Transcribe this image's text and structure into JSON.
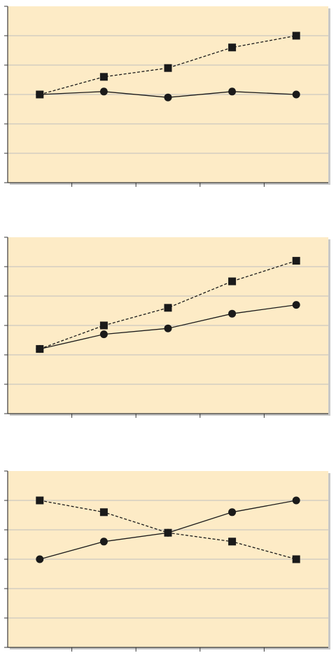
{
  "colors": {
    "plot_bg": "#fdebc6",
    "grid": "#bfbfbf",
    "axis": "#3a3a3a",
    "series": "#1a1a1a",
    "shadow": "#9a9a9a"
  },
  "chart_data": [
    {
      "type": "line",
      "grid": true,
      "ylim": [
        0,
        6
      ],
      "yticks": [
        0,
        1,
        2,
        3,
        4,
        5,
        6
      ],
      "xlim": [
        0.5,
        5.5
      ],
      "x_ticks": [
        1.5,
        2.5,
        3.5,
        4.5
      ],
      "x": [
        1,
        2,
        3,
        4,
        5
      ],
      "series": [
        {
          "marker": "square",
          "dash": true,
          "values": [
            3.0,
            3.6,
            3.9,
            4.6,
            5.0
          ]
        },
        {
          "marker": "circle",
          "dash": false,
          "values": [
            3.0,
            3.1,
            2.9,
            3.1,
            3.0
          ]
        }
      ]
    },
    {
      "type": "line",
      "grid": true,
      "ylim": [
        0,
        6
      ],
      "yticks": [
        0,
        1,
        2,
        3,
        4,
        5,
        6
      ],
      "xlim": [
        0.5,
        5.5
      ],
      "x_ticks": [
        1.5,
        2.5,
        3.5,
        4.5
      ],
      "x": [
        1,
        2,
        3,
        4,
        5
      ],
      "series": [
        {
          "marker": "square",
          "dash": true,
          "values": [
            2.2,
            3.0,
            3.6,
            4.5,
            5.2
          ]
        },
        {
          "marker": "circle",
          "dash": false,
          "values": [
            2.2,
            2.7,
            2.9,
            3.4,
            3.7
          ]
        }
      ]
    },
    {
      "type": "line",
      "grid": true,
      "ylim": [
        0,
        6
      ],
      "yticks": [
        0,
        1,
        2,
        3,
        4,
        5,
        6
      ],
      "xlim": [
        0.5,
        5.5
      ],
      "x_ticks": [
        1.5,
        2.5,
        3.5,
        4.5
      ],
      "x": [
        1,
        2,
        3,
        4,
        5
      ],
      "series": [
        {
          "marker": "square",
          "dash": true,
          "values": [
            5.0,
            4.6,
            3.9,
            3.6,
            3.0
          ]
        },
        {
          "marker": "circle",
          "dash": false,
          "values": [
            3.0,
            3.6,
            3.9,
            4.6,
            5.0
          ]
        }
      ]
    }
  ]
}
